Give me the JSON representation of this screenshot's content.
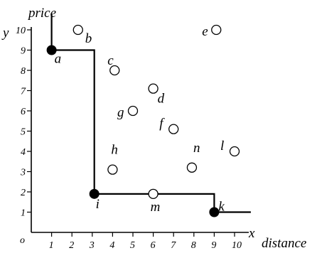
{
  "chart_data": {
    "type": "scatter",
    "title": "",
    "xlabel": "distance",
    "ylabel": "price",
    "x_axis_letter": "x",
    "y_axis_letter": "y",
    "origin_label": "o",
    "xlim": [
      0,
      10.8
    ],
    "ylim": [
      0,
      11
    ],
    "x_ticks": [
      1,
      2,
      3,
      4,
      5,
      6,
      7,
      8,
      9,
      10
    ],
    "y_ticks": [
      1,
      2,
      3,
      4,
      5,
      6,
      7,
      8,
      9,
      10
    ],
    "grid": false,
    "skyline_points": [
      {
        "label": "a",
        "x": 1,
        "y": 9
      },
      {
        "label": "i",
        "x": 3.1,
        "y": 1.9
      },
      {
        "label": "k",
        "x": 9,
        "y": 1
      }
    ],
    "other_points": [
      {
        "label": "b",
        "x": 2.3,
        "y": 10
      },
      {
        "label": "c",
        "x": 4.1,
        "y": 8
      },
      {
        "label": "d",
        "x": 6,
        "y": 7.1
      },
      {
        "label": "e",
        "x": 9.1,
        "y": 10
      },
      {
        "label": "f",
        "x": 7,
        "y": 5.1
      },
      {
        "label": "g",
        "x": 5,
        "y": 6
      },
      {
        "label": "h",
        "x": 4,
        "y": 3.1
      },
      {
        "label": "l",
        "x": 10,
        "y": 4
      },
      {
        "label": "m",
        "x": 6,
        "y": 1.9
      },
      {
        "label": "n",
        "x": 7.9,
        "y": 3.2
      }
    ],
    "skyline_path": [
      {
        "x": 1,
        "y": 10.8
      },
      {
        "x": 1,
        "y": 9
      },
      {
        "x": 3.1,
        "y": 9
      },
      {
        "x": 3.1,
        "y": 1.9
      },
      {
        "x": 9,
        "y": 1.9
      },
      {
        "x": 9,
        "y": 1
      },
      {
        "x": 10.8,
        "y": 1
      }
    ]
  }
}
